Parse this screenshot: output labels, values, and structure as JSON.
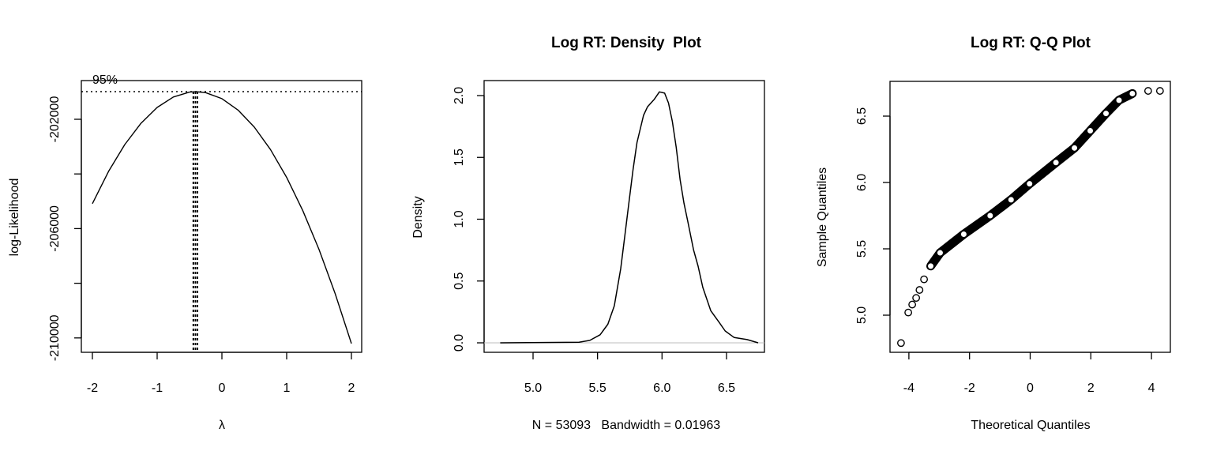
{
  "chart_data": [
    {
      "type": "line",
      "title": "",
      "xlabel": "λ",
      "ylabel": "log-Likelihood",
      "annotation": "95%",
      "xlim": [
        -2.1,
        2.1
      ],
      "ylim": [
        -210500,
        -200600
      ],
      "xticks": [
        "-2",
        "-1",
        "0",
        "1",
        "2"
      ],
      "xtick_values": [
        -2,
        -1,
        0,
        1,
        2
      ],
      "yticks": [
        "-202000",
        "-206000",
        "-210000"
      ],
      "ytick_values": [
        -202000,
        -204000,
        -206000,
        -208000,
        -210000
      ],
      "ytick_labeled": [
        -202000,
        -206000,
        -210000
      ],
      "max_loglik": -200990,
      "ci_lambda": [
        -0.44,
        -0.38
      ],
      "x": [
        -2,
        -1.75,
        -1.5,
        -1.25,
        -1,
        -0.75,
        -0.5,
        -0.4,
        -0.25,
        0,
        0.25,
        0.5,
        0.75,
        1,
        1.25,
        1.5,
        1.75,
        2
      ],
      "y": [
        -205086,
        -203906,
        -202926,
        -202146,
        -201566,
        -201186,
        -201006,
        -200990,
        -201026,
        -201246,
        -201666,
        -202286,
        -203106,
        -204126,
        -205346,
        -206766,
        -208386,
        -210206
      ]
    },
    {
      "type": "line",
      "title": "Log RT: Density  Plot",
      "xlabel": "N = 53093   Bandwidth = 0.01963",
      "ylabel": "Density",
      "xlim": [
        4.62,
        6.82
      ],
      "ylim": [
        -0.08,
        2.13
      ],
      "xticks": [
        "5.0",
        "5.5",
        "6.0",
        "6.5"
      ],
      "xtick_values": [
        5.0,
        5.5,
        6.0,
        6.5
      ],
      "yticks": [
        "0.0",
        "0.5",
        "1.0",
        "1.5",
        "2.0"
      ],
      "ytick_values": [
        0,
        0.5,
        1.0,
        1.5,
        2.0
      ],
      "x": [
        4.745,
        5.357,
        5.44,
        5.52,
        5.58,
        5.63,
        5.68,
        5.71,
        5.745,
        5.775,
        5.806,
        5.857,
        5.888,
        5.94,
        5.98,
        6.02,
        6.05,
        6.08,
        6.11,
        6.14,
        6.17,
        6.2,
        6.245,
        6.28,
        6.316,
        6.378,
        6.44,
        6.49,
        6.56,
        6.66,
        6.745
      ],
      "y": [
        0,
        0.005,
        0.02,
        0.065,
        0.15,
        0.3,
        0.6,
        0.85,
        1.15,
        1.4,
        1.62,
        1.84,
        1.91,
        1.97,
        2.03,
        2.02,
        1.94,
        1.79,
        1.58,
        1.32,
        1.13,
        0.98,
        0.75,
        0.62,
        0.45,
        0.26,
        0.17,
        0.096,
        0.043,
        0.026,
        0
      ]
    },
    {
      "type": "scatter",
      "title": "Log RT: Q-Q Plot",
      "xlabel": "Theoretical Quantiles",
      "ylabel": "Sample Quantiles",
      "xlim": [
        -4.6,
        4.6
      ],
      "ylim": [
        4.72,
        6.76
      ],
      "xticks": [
        "-4",
        "-2",
        "0",
        "2",
        "4"
      ],
      "xtick_values": [
        -4,
        -2,
        0,
        2,
        4
      ],
      "yticks": [
        "5.0",
        "5.5",
        "6.0",
        "6.5"
      ],
      "ytick_values": [
        5.0,
        5.5,
        6.0,
        6.5
      ],
      "x": [
        -4.26,
        -4.02,
        -3.89,
        -3.76,
        -3.65,
        -3.5,
        -3.28,
        -2.97,
        -2.19,
        -1.32,
        -0.63,
        -0.02,
        0.85,
        1.46,
        1.98,
        2.5,
        2.93,
        3.37,
        3.89,
        4.28
      ],
      "y": [
        4.79,
        5.02,
        5.08,
        5.13,
        5.19,
        5.27,
        5.37,
        5.47,
        5.61,
        5.75,
        5.87,
        5.99,
        6.15,
        6.26,
        6.39,
        6.52,
        6.62,
        6.67,
        6.69,
        6.69
      ]
    }
  ]
}
